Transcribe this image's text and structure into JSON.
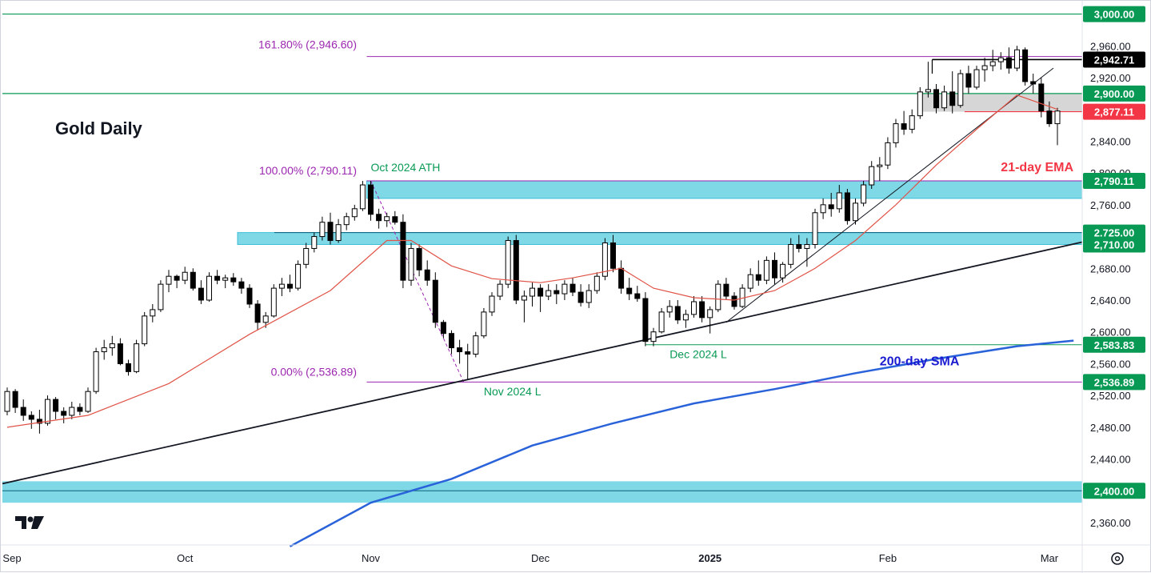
{
  "chart_data": {
    "type": "candlestick",
    "title": "Gold Daily",
    "x_ticks": [
      {
        "label": "Sep",
        "bar": 0
      },
      {
        "label": "Oct",
        "bar": 22
      },
      {
        "label": "Nov",
        "bar": 45
      },
      {
        "label": "Dec",
        "bar": 66
      },
      {
        "label": "2025",
        "bar": 87,
        "bold": true
      },
      {
        "label": "Feb",
        "bar": 109
      },
      {
        "label": "Mar",
        "bar": 129
      }
    ],
    "y_ticks": [
      2360,
      2400,
      2440,
      2480,
      2520,
      2560,
      2600,
      2640,
      2680,
      2720,
      2760,
      2800,
      2840,
      2880,
      2920,
      2960
    ],
    "ylim": [
      2330,
      2995
    ],
    "price_labels": [
      {
        "value": 3000.0,
        "text": "3,000.00",
        "color": "#089a54"
      },
      {
        "value": 2942.71,
        "text": "2,942.71",
        "color": "#000000"
      },
      {
        "value": 2900.0,
        "text": "2,900.00",
        "color": "#089a54"
      },
      {
        "value": 2877.11,
        "text": "2,877.11",
        "color": "#f23645"
      },
      {
        "value": 2790.11,
        "text": "2,790.11",
        "color": "#089a54"
      },
      {
        "value": 2725.0,
        "text": "2,725.00",
        "color": "#089a54"
      },
      {
        "value": 2710.0,
        "text": "2,710.00",
        "color": "#089a54"
      },
      {
        "value": 2583.83,
        "text": "2,583.83",
        "color": "#089a54"
      },
      {
        "value": 2536.89,
        "text": "2,536.89",
        "color": "#089a54"
      },
      {
        "value": 2400.0,
        "text": "2,400.00",
        "color": "#089a54"
      }
    ],
    "fib_levels": [
      {
        "label": "161.80% (2,946.60)",
        "value": 2946.6
      },
      {
        "label": "100.00% (2,790.11)",
        "value": 2790.11
      },
      {
        "label": "0.00% (2,536.89)",
        "value": 2536.89
      }
    ],
    "annotations": [
      {
        "text": "Oct 2024 ATH",
        "color": "#089a54",
        "bar": 45,
        "value": 2802
      },
      {
        "text": "Nov 2024 L",
        "color": "#089a54",
        "bar": 59,
        "value": 2520
      },
      {
        "text": "Dec 2024 L",
        "color": "#089a54",
        "bar": 82,
        "value": 2567
      },
      {
        "text": "21-day EMA",
        "color": "#f23645",
        "bar": 123,
        "value": 2802
      },
      {
        "text": "200-day SMA",
        "color": "#1a1bd0",
        "bar": 108,
        "value": 2558
      }
    ],
    "candles": [
      [
        2500,
        2530,
        2495,
        2525
      ],
      [
        2525,
        2528,
        2498,
        2505
      ],
      [
        2505,
        2515,
        2488,
        2495
      ],
      [
        2495,
        2500,
        2478,
        2490
      ],
      [
        2490,
        2502,
        2472,
        2485
      ],
      [
        2485,
        2520,
        2482,
        2515
      ],
      [
        2515,
        2518,
        2490,
        2500
      ],
      [
        2500,
        2505,
        2485,
        2495
      ],
      [
        2495,
        2512,
        2490,
        2505
      ],
      [
        2505,
        2510,
        2495,
        2500
      ],
      [
        2500,
        2530,
        2498,
        2525
      ],
      [
        2525,
        2580,
        2522,
        2575
      ],
      [
        2575,
        2590,
        2565,
        2580
      ],
      [
        2580,
        2595,
        2570,
        2585
      ],
      [
        2585,
        2592,
        2558,
        2560
      ],
      [
        2560,
        2565,
        2545,
        2550
      ],
      [
        2550,
        2590,
        2548,
        2585
      ],
      [
        2585,
        2625,
        2582,
        2620
      ],
      [
        2620,
        2635,
        2612,
        2628
      ],
      [
        2628,
        2665,
        2625,
        2660
      ],
      [
        2660,
        2678,
        2650,
        2670
      ],
      [
        2670,
        2672,
        2655,
        2665
      ],
      [
        2665,
        2682,
        2660,
        2675
      ],
      [
        2675,
        2680,
        2652,
        2655
      ],
      [
        2655,
        2665,
        2635,
        2640
      ],
      [
        2640,
        2675,
        2638,
        2670
      ],
      [
        2670,
        2678,
        2660,
        2665
      ],
      [
        2665,
        2672,
        2655,
        2668
      ],
      [
        2668,
        2674,
        2658,
        2663
      ],
      [
        2663,
        2668,
        2648,
        2655
      ],
      [
        2655,
        2660,
        2630,
        2635
      ],
      [
        2635,
        2640,
        2602,
        2612
      ],
      [
        2612,
        2625,
        2605,
        2620
      ],
      [
        2620,
        2660,
        2618,
        2655
      ],
      [
        2655,
        2668,
        2645,
        2660
      ],
      [
        2660,
        2672,
        2650,
        2655
      ],
      [
        2655,
        2690,
        2652,
        2685
      ],
      [
        2685,
        2712,
        2680,
        2705
      ],
      [
        2705,
        2725,
        2700,
        2720
      ],
      [
        2720,
        2745,
        2715,
        2738
      ],
      [
        2738,
        2750,
        2710,
        2715
      ],
      [
        2715,
        2742,
        2712,
        2735
      ],
      [
        2735,
        2750,
        2728,
        2745
      ],
      [
        2745,
        2760,
        2740,
        2755
      ],
      [
        2755,
        2790,
        2752,
        2785
      ],
      [
        2785,
        2790,
        2740,
        2748
      ],
      [
        2748,
        2755,
        2730,
        2740
      ],
      [
        2740,
        2750,
        2732,
        2745
      ],
      [
        2745,
        2752,
        2735,
        2738
      ],
      [
        2738,
        2748,
        2655,
        2665
      ],
      [
        2665,
        2712,
        2658,
        2705
      ],
      [
        2705,
        2710,
        2670,
        2678
      ],
      [
        2678,
        2690,
        2658,
        2665
      ],
      [
        2665,
        2675,
        2605,
        2612
      ],
      [
        2612,
        2615,
        2592,
        2598
      ],
      [
        2598,
        2602,
        2572,
        2580
      ],
      [
        2580,
        2590,
        2560,
        2575
      ],
      [
        2575,
        2585,
        2540,
        2572
      ],
      [
        2572,
        2600,
        2568,
        2595
      ],
      [
        2595,
        2630,
        2592,
        2625
      ],
      [
        2625,
        2650,
        2620,
        2645
      ],
      [
        2645,
        2665,
        2640,
        2660
      ],
      [
        2660,
        2720,
        2655,
        2715
      ],
      [
        2715,
        2722,
        2635,
        2640
      ],
      [
        2640,
        2652,
        2612,
        2645
      ],
      [
        2645,
        2662,
        2632,
        2655
      ],
      [
        2655,
        2660,
        2625,
        2645
      ],
      [
        2645,
        2660,
        2640,
        2652
      ],
      [
        2652,
        2660,
        2635,
        2648
      ],
      [
        2648,
        2665,
        2640,
        2660
      ],
      [
        2660,
        2668,
        2645,
        2650
      ],
      [
        2650,
        2660,
        2632,
        2637
      ],
      [
        2637,
        2660,
        2630,
        2652
      ],
      [
        2652,
        2675,
        2648,
        2670
      ],
      [
        2670,
        2718,
        2665,
        2712
      ],
      [
        2712,
        2722,
        2675,
        2680
      ],
      [
        2680,
        2690,
        2648,
        2655
      ],
      [
        2655,
        2668,
        2640,
        2648
      ],
      [
        2648,
        2658,
        2638,
        2642
      ],
      [
        2642,
        2650,
        2582,
        2588
      ],
      [
        2588,
        2605,
        2582,
        2600
      ],
      [
        2600,
        2630,
        2598,
        2625
      ],
      [
        2625,
        2640,
        2618,
        2632
      ],
      [
        2632,
        2640,
        2610,
        2615
      ],
      [
        2615,
        2628,
        2605,
        2622
      ],
      [
        2622,
        2645,
        2618,
        2638
      ],
      [
        2638,
        2645,
        2612,
        2618
      ],
      [
        2618,
        2632,
        2598,
        2628
      ],
      [
        2628,
        2665,
        2625,
        2660
      ],
      [
        2660,
        2668,
        2640,
        2645
      ],
      [
        2645,
        2650,
        2628,
        2632
      ],
      [
        2632,
        2660,
        2630,
        2655
      ],
      [
        2655,
        2680,
        2650,
        2672
      ],
      [
        2672,
        2690,
        2658,
        2665
      ],
      [
        2665,
        2695,
        2660,
        2690
      ],
      [
        2690,
        2700,
        2660,
        2668
      ],
      [
        2668,
        2688,
        2662,
        2685
      ],
      [
        2685,
        2718,
        2680,
        2710
      ],
      [
        2710,
        2722,
        2700,
        2705
      ],
      [
        2705,
        2718,
        2682,
        2710
      ],
      [
        2710,
        2755,
        2705,
        2750
      ],
      [
        2750,
        2768,
        2742,
        2760
      ],
      [
        2760,
        2775,
        2745,
        2755
      ],
      [
        2755,
        2785,
        2750,
        2775
      ],
      [
        2775,
        2780,
        2735,
        2740
      ],
      [
        2740,
        2768,
        2735,
        2762
      ],
      [
        2762,
        2790,
        2758,
        2785
      ],
      [
        2785,
        2815,
        2780,
        2808
      ],
      [
        2808,
        2820,
        2790,
        2810
      ],
      [
        2810,
        2845,
        2805,
        2838
      ],
      [
        2838,
        2868,
        2832,
        2862
      ],
      [
        2862,
        2878,
        2848,
        2855
      ],
      [
        2855,
        2880,
        2850,
        2872
      ],
      [
        2872,
        2908,
        2868,
        2902
      ],
      [
        2902,
        2940,
        2895,
        2905
      ],
      [
        2905,
        2912,
        2875,
        2882
      ],
      [
        2882,
        2910,
        2878,
        2902
      ],
      [
        2902,
        2928,
        2875,
        2885
      ],
      [
        2885,
        2930,
        2882,
        2925
      ],
      [
        2925,
        2935,
        2900,
        2908
      ],
      [
        2908,
        2935,
        2905,
        2930
      ],
      [
        2930,
        2945,
        2915,
        2935
      ],
      [
        2935,
        2955,
        2928,
        2940
      ],
      [
        2940,
        2952,
        2930,
        2945
      ],
      [
        2945,
        2958,
        2925,
        2932
      ],
      [
        2932,
        2960,
        2928,
        2955
      ],
      [
        2955,
        2958,
        2910,
        2915
      ],
      [
        2915,
        2925,
        2900,
        2912
      ],
      [
        2912,
        2920,
        2870,
        2878
      ],
      [
        2878,
        2890,
        2858,
        2862
      ],
      [
        2862,
        2882,
        2835,
        2878
      ]
    ],
    "ema21": [
      [
        0,
        2480
      ],
      [
        10,
        2495
      ],
      [
        20,
        2535
      ],
      [
        30,
        2597
      ],
      [
        40,
        2652
      ],
      [
        47,
        2715
      ],
      [
        50,
        2715
      ],
      [
        55,
        2683
      ],
      [
        60,
        2667
      ],
      [
        66,
        2662
      ],
      [
        70,
        2668
      ],
      [
        76,
        2680
      ],
      [
        80,
        2655
      ],
      [
        85,
        2643
      ],
      [
        90,
        2640
      ],
      [
        95,
        2652
      ],
      [
        100,
        2680
      ],
      [
        105,
        2715
      ],
      [
        110,
        2760
      ],
      [
        115,
        2810
      ],
      [
        120,
        2855
      ],
      [
        125,
        2898
      ],
      [
        130,
        2880
      ]
    ],
    "sma200": [
      [
        35,
        2330
      ],
      [
        45,
        2385
      ],
      [
        55,
        2415
      ],
      [
        65,
        2457
      ],
      [
        75,
        2485
      ],
      [
        85,
        2510
      ],
      [
        95,
        2528
      ],
      [
        105,
        2548
      ],
      [
        115,
        2566
      ],
      [
        125,
        2582
      ],
      [
        132,
        2589
      ]
    ]
  }
}
